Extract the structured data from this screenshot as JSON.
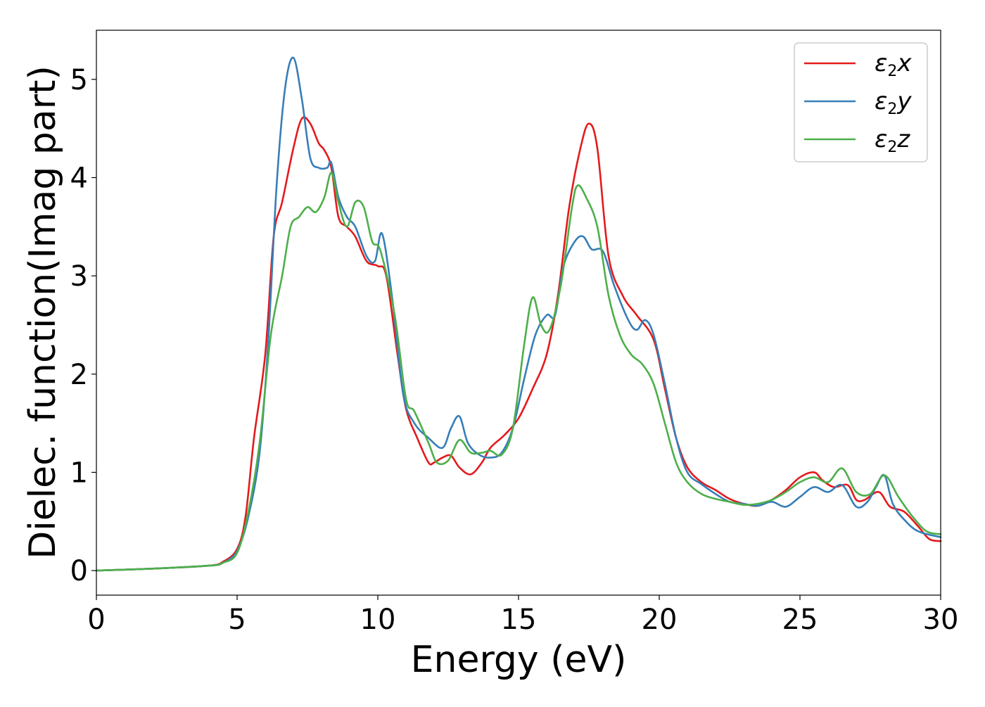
{
  "chart_data": {
    "type": "line",
    "xlabel": "Energy (eV)",
    "ylabel": "Dielec. function(Imag part)",
    "xlim": [
      0,
      30
    ],
    "ylim": [
      -0.25,
      5.5
    ],
    "xticks": [
      "0",
      "5",
      "10",
      "15",
      "20",
      "25",
      "30"
    ],
    "yticks": [
      "0",
      "1",
      "2",
      "3",
      "4",
      "5"
    ],
    "grid": false,
    "legend_position": "top-right",
    "series": [
      {
        "name": "ε2x",
        "legend": {
          "symbol": "ε",
          "sub": "2",
          "suffix": "x"
        },
        "color": "#e41a1c",
        "x": [
          0,
          2,
          4,
          4.5,
          5,
          5.3,
          5.6,
          6,
          6.3,
          6.6,
          7,
          7.3,
          7.6,
          7.9,
          8.1,
          8.35,
          8.6,
          8.9,
          9.2,
          9.6,
          10,
          10.3,
          10.7,
          11,
          11.4,
          11.8,
          12,
          12.3,
          12.6,
          12.9,
          13.3,
          13.7,
          14,
          14.5,
          15,
          15.5,
          16,
          16.4,
          16.8,
          17.2,
          17.5,
          17.8,
          18.2,
          18.7,
          19.2,
          19.8,
          20.2,
          20.6,
          21,
          21.5,
          22,
          22.5,
          23,
          23.5,
          24,
          24.5,
          25,
          25.5,
          25.8,
          26.2,
          26.7,
          27,
          27.3,
          27.8,
          28.2,
          28.7,
          29.2,
          29.6,
          30
        ],
        "y": [
          0,
          0.02,
          0.05,
          0.09,
          0.22,
          0.55,
          1.35,
          2.2,
          3.4,
          3.75,
          4.3,
          4.6,
          4.55,
          4.35,
          4.28,
          4.1,
          3.6,
          3.5,
          3.4,
          3.15,
          3.1,
          3.0,
          2.2,
          1.65,
          1.35,
          1.1,
          1.1,
          1.15,
          1.17,
          1.05,
          0.98,
          1.1,
          1.25,
          1.38,
          1.55,
          1.85,
          2.2,
          2.8,
          3.7,
          4.3,
          4.55,
          4.3,
          3.2,
          2.8,
          2.6,
          2.35,
          1.85,
          1.35,
          1.05,
          0.9,
          0.82,
          0.73,
          0.68,
          0.66,
          0.72,
          0.82,
          0.95,
          1.0,
          0.92,
          0.85,
          0.87,
          0.72,
          0.72,
          0.8,
          0.65,
          0.6,
          0.45,
          0.32,
          0.3
        ]
      },
      {
        "name": "ε2y",
        "legend": {
          "symbol": "ε",
          "sub": "2",
          "suffix": "y"
        },
        "color": "#377eb8",
        "x": [
          0,
          2,
          4,
          4.5,
          5,
          5.4,
          5.8,
          6.1,
          6.4,
          6.7,
          7,
          7.3,
          7.6,
          7.9,
          8.2,
          8.35,
          8.6,
          8.9,
          9.2,
          9.6,
          9.9,
          10.15,
          10.5,
          10.9,
          11.3,
          11.8,
          12.3,
          12.6,
          12.9,
          13.2,
          13.6,
          14,
          14.4,
          14.8,
          15.2,
          15.6,
          16,
          16.3,
          16.6,
          17,
          17.3,
          17.6,
          18,
          18.4,
          18.9,
          19.2,
          19.5,
          19.8,
          20.2,
          20.6,
          21,
          21.5,
          22,
          22.5,
          23,
          23.5,
          24,
          24.5,
          25,
          25.5,
          26,
          26.5,
          27,
          27.4,
          27.7,
          28,
          28.3,
          28.7,
          29.2,
          30
        ],
        "y": [
          0,
          0.02,
          0.05,
          0.08,
          0.2,
          0.55,
          1.2,
          2.3,
          3.9,
          4.9,
          5.22,
          4.8,
          4.2,
          4.1,
          4.1,
          4.15,
          3.8,
          3.6,
          3.5,
          3.2,
          3.15,
          3.43,
          2.8,
          1.8,
          1.5,
          1.35,
          1.25,
          1.45,
          1.57,
          1.3,
          1.18,
          1.15,
          1.2,
          1.45,
          1.95,
          2.4,
          2.6,
          2.6,
          3.1,
          3.35,
          3.4,
          3.27,
          3.25,
          2.9,
          2.55,
          2.45,
          2.55,
          2.4,
          1.9,
          1.35,
          1.0,
          0.88,
          0.78,
          0.7,
          0.68,
          0.66,
          0.7,
          0.65,
          0.75,
          0.85,
          0.8,
          0.87,
          0.65,
          0.7,
          0.85,
          0.97,
          0.68,
          0.52,
          0.4,
          0.34
        ]
      },
      {
        "name": "ε2z",
        "legend": {
          "symbol": "ε",
          "sub": "2",
          "suffix": "z"
        },
        "color": "#4daf4a",
        "x": [
          0,
          2,
          4,
          4.5,
          5,
          5.4,
          5.8,
          6.2,
          6.6,
          6.9,
          7.2,
          7.5,
          7.8,
          8.1,
          8.35,
          8.6,
          8.9,
          9.2,
          9.5,
          9.8,
          10.1,
          10.6,
          11,
          11.3,
          11.8,
          12.1,
          12.5,
          12.9,
          13.3,
          13.7,
          14,
          14.4,
          14.8,
          15.2,
          15.5,
          15.8,
          16.1,
          16.5,
          16.9,
          17.1,
          17.4,
          17.8,
          18.2,
          18.6,
          19,
          19.4,
          19.8,
          20.2,
          20.6,
          21,
          21.5,
          22,
          22.5,
          23,
          23.5,
          24,
          24.5,
          25,
          25.5,
          26,
          26.5,
          27,
          27.5,
          28,
          28.5,
          29,
          29.5,
          30
        ],
        "y": [
          0,
          0.02,
          0.05,
          0.08,
          0.18,
          0.6,
          1.3,
          2.4,
          3.0,
          3.5,
          3.6,
          3.7,
          3.65,
          3.8,
          4.05,
          3.75,
          3.5,
          3.75,
          3.7,
          3.35,
          3.25,
          2.6,
          1.75,
          1.62,
          1.3,
          1.1,
          1.12,
          1.33,
          1.2,
          1.2,
          1.22,
          1.18,
          1.45,
          2.3,
          2.78,
          2.5,
          2.45,
          2.9,
          3.7,
          3.92,
          3.8,
          3.5,
          2.8,
          2.4,
          2.2,
          2.1,
          1.9,
          1.5,
          1.1,
          0.9,
          0.78,
          0.73,
          0.7,
          0.67,
          0.68,
          0.72,
          0.8,
          0.9,
          0.95,
          0.9,
          1.04,
          0.8,
          0.78,
          0.97,
          0.75,
          0.55,
          0.4,
          0.37
        ]
      }
    ]
  }
}
